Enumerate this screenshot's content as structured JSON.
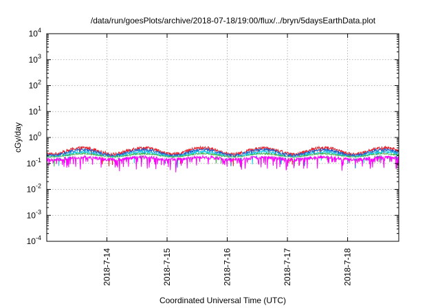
{
  "chart_data": {
    "type": "line",
    "title": "/data/run/goesPlots/archive/2018-07-18/19:00/flux/../bryn/5daysEarthData.plot",
    "xlabel": "Coordinated Universal Time (UTC)",
    "ylabel": "cGy/day",
    "yscale": "log",
    "ylim": [
      0.0001,
      10000
    ],
    "xlim_days": [
      13.0,
      18.85
    ],
    "grid": true,
    "legend": "none",
    "y_ticks": [
      {
        "base": "10",
        "exp": "-4",
        "value": 0.0001
      },
      {
        "base": "10",
        "exp": "-3",
        "value": 0.001
      },
      {
        "base": "10",
        "exp": "-2",
        "value": 0.01
      },
      {
        "base": "10",
        "exp": "-1",
        "value": 0.1
      },
      {
        "base": "10",
        "exp": "0",
        "value": 1
      },
      {
        "base": "10",
        "exp": "1",
        "value": 10
      },
      {
        "base": "10",
        "exp": "2",
        "value": 100
      },
      {
        "base": "10",
        "exp": "3",
        "value": 1000
      },
      {
        "base": "10",
        "exp": "4",
        "value": 10000
      }
    ],
    "x_ticks": [
      {
        "label": "2018-7-14",
        "day": 14
      },
      {
        "label": "2018-7-15",
        "day": 15
      },
      {
        "label": "2018-7-16",
        "day": 16
      },
      {
        "label": "2018-7-17",
        "day": 17
      },
      {
        "label": "2018-7-18",
        "day": 18
      }
    ],
    "series": [
      {
        "color": "#e8212b",
        "base": 0.3,
        "amp": 0.55,
        "noise": 0.3,
        "dips": 0.15
      },
      {
        "color": "#1f5ec9",
        "base": 0.26,
        "amp": 0.5,
        "noise": 0.25,
        "dips": 0.15
      },
      {
        "color": "#18c8e6",
        "base": 0.22,
        "amp": 0.45,
        "noise": 0.22,
        "dips": 0.12
      },
      {
        "color": "#3cb44b",
        "base": 0.2,
        "amp": 0.3,
        "noise": 0.15,
        "dips": 0.1
      },
      {
        "color": "#ffffff",
        "base": 0.185,
        "amp": 0.25,
        "noise": 0.1,
        "dips": 0.08
      },
      {
        "color": "#ff00ff",
        "base": 0.15,
        "amp": 0.22,
        "noise": 0.3,
        "dips": 0.6
      }
    ]
  }
}
